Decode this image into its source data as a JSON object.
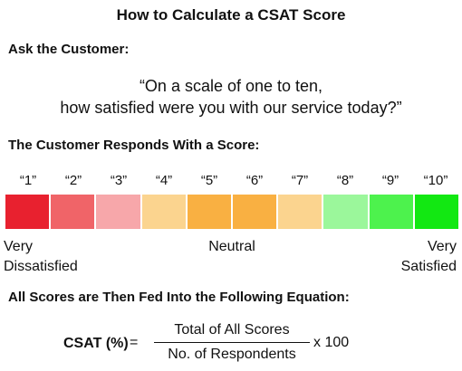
{
  "title": "How to Calculate a CSAT Score",
  "ask_heading": "Ask the Customer:",
  "quote": {
    "line1": "“On a scale of one to ten,",
    "line2": "how satisfied were you with our service today?”"
  },
  "respond_heading": "The Customer Responds With a Score:",
  "scale": {
    "labels": [
      "“1”",
      "“2”",
      "“3”",
      "“4”",
      "“5”",
      "“6”",
      "“7”",
      "“8”",
      "“9”",
      "“10”"
    ],
    "colors": [
      "#e8212f",
      "#f06468",
      "#f7a7aa",
      "#fbd48f",
      "#f9b042",
      "#f9b042",
      "#fbd48f",
      "#9bf79b",
      "#4df24d",
      "#12e812"
    ],
    "low_anchor": {
      "line1": "Very",
      "line2": "Dissatisfied"
    },
    "mid_anchor": "Neutral",
    "high_anchor": {
      "line1": "Very",
      "line2": "Satisfied"
    }
  },
  "equation_heading": "All Scores are Then Fed Into the Following Equation:",
  "equation": {
    "label": "CSAT (%)",
    "equals": "=",
    "numerator": "Total of All Scores",
    "denominator": "No. of Respondents",
    "multiplier": "x 100"
  }
}
